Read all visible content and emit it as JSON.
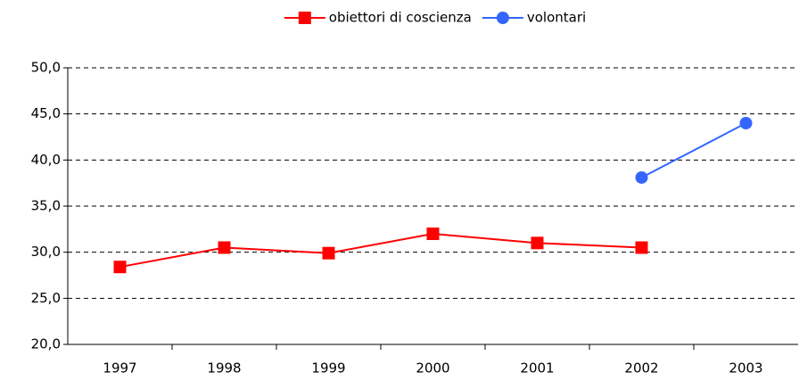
{
  "chart_data": {
    "type": "line",
    "categories": [
      "1997",
      "1998",
      "1999",
      "2000",
      "2001",
      "2002",
      "2003"
    ],
    "series": [
      {
        "name": "obiettori di coscienza",
        "color": "#ff0000",
        "marker": "square",
        "values": [
          28.4,
          30.5,
          29.9,
          32.0,
          31.0,
          30.5,
          null
        ]
      },
      {
        "name": "volontari",
        "color": "#3366ff",
        "marker": "circle",
        "values": [
          null,
          null,
          null,
          null,
          null,
          38.1,
          44.0
        ]
      }
    ],
    "ylim": [
      20,
      50
    ],
    "yticks": [
      {
        "value": 20,
        "label": "20,0"
      },
      {
        "value": 25,
        "label": "25,0"
      },
      {
        "value": 30,
        "label": "30,0"
      },
      {
        "value": 35,
        "label": "35,0"
      },
      {
        "value": 40,
        "label": "40,0"
      },
      {
        "value": 45,
        "label": "45,0"
      },
      {
        "value": 50,
        "label": "50,0"
      }
    ],
    "grid": true,
    "legend": "top"
  }
}
